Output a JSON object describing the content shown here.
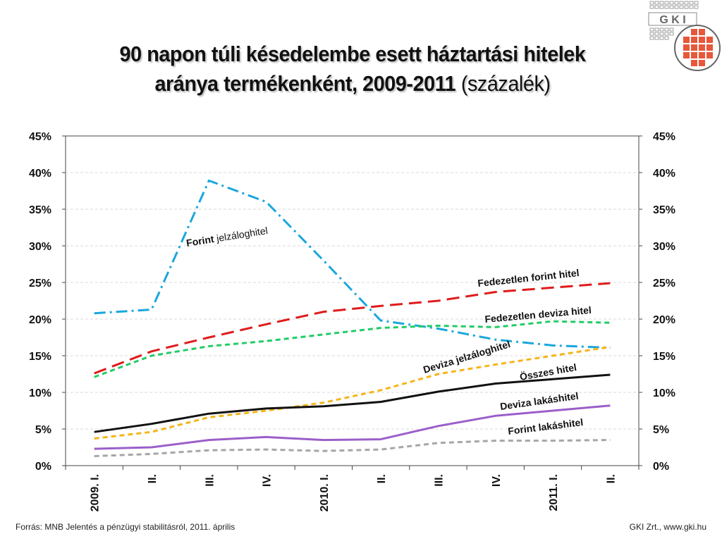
{
  "title": {
    "line1": "90 napon túli késedelembe esett háztartási hitelek",
    "line2": "aránya termékenként, 2009-2011",
    "unit": "(százalék)"
  },
  "logo": {
    "text": "G K I",
    "icon": "gki-logo-icon"
  },
  "footer": {
    "source": "Forrás: MNB Jelentés a pénzügyi  stabilitásról, 2011. április",
    "publisher": "GKI Zrt., www.gki.hu"
  },
  "chart_data": {
    "type": "line",
    "categories": [
      "2009. I.",
      "II.",
      "III.",
      "IV.",
      "2010. I.",
      "II.",
      "III.",
      "IV.",
      "2011. I.",
      "II."
    ],
    "ylim": [
      0,
      45
    ],
    "yticks": [
      "0%",
      "5%",
      "10%",
      "15%",
      "20%",
      "25%",
      "30%",
      "35%",
      "40%",
      "45%"
    ],
    "grid": true,
    "legend": "inline labels",
    "series": [
      {
        "name": "Forint jelzáloghitel",
        "label_bold": "Forint",
        "label_rest": " jelzáloghitel",
        "color": "#1aa7dd",
        "dash": "dashdot",
        "values": [
          20.8,
          21.3,
          38.9,
          36.0,
          28.0,
          19.8,
          18.7,
          17.2,
          16.4,
          16.1
        ]
      },
      {
        "name": "Fedezetlen forint hitel",
        "color": "#e01b1b",
        "dash": "longdash",
        "values": [
          12.6,
          15.6,
          17.5,
          19.3,
          21.0,
          21.8,
          22.5,
          23.7,
          24.3,
          24.9
        ]
      },
      {
        "name": "Fedezetlen deviza hitel",
        "color": "#22cc66",
        "dash": "dash",
        "values": [
          12.1,
          15.0,
          16.3,
          17.0,
          17.9,
          18.8,
          19.1,
          18.9,
          19.7,
          19.5
        ]
      },
      {
        "name": "Deviza jelzáloghitel",
        "color": "#f5b519",
        "dash": "dash",
        "values": [
          3.7,
          4.6,
          6.6,
          7.5,
          8.6,
          10.3,
          12.5,
          13.8,
          15.0,
          16.2
        ]
      },
      {
        "name": "Összes hitel",
        "color": "#111111",
        "dash": "solid",
        "values": [
          4.6,
          5.7,
          7.1,
          7.8,
          8.1,
          8.7,
          10.1,
          11.2,
          11.8,
          12.4
        ]
      },
      {
        "name": "Deviza lakáshitel",
        "color": "#9b5fc9",
        "dash": "solid",
        "values": [
          2.3,
          2.5,
          3.5,
          3.9,
          3.5,
          3.6,
          5.4,
          6.8,
          7.5,
          8.2
        ]
      },
      {
        "name": "Forint lakáshitel",
        "color": "#a6a6a6",
        "dash": "dash",
        "values": [
          1.3,
          1.6,
          2.1,
          2.2,
          2.0,
          2.2,
          3.1,
          3.4,
          3.4,
          3.5
        ]
      }
    ]
  }
}
